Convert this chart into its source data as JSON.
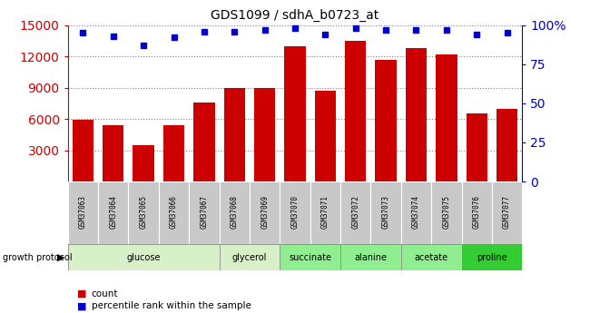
{
  "title": "GDS1099 / sdhA_b0723_at",
  "samples": [
    "GSM37063",
    "GSM37064",
    "GSM37065",
    "GSM37066",
    "GSM37067",
    "GSM37068",
    "GSM37069",
    "GSM37070",
    "GSM37071",
    "GSM37072",
    "GSM37073",
    "GSM37074",
    "GSM37075",
    "GSM37076",
    "GSM37077"
  ],
  "counts": [
    5900,
    5400,
    3500,
    5400,
    7600,
    9000,
    9000,
    13000,
    8700,
    13500,
    11700,
    12800,
    12200,
    6500,
    7000
  ],
  "percentiles": [
    95,
    93,
    87,
    92,
    96,
    96,
    97,
    98,
    94,
    98,
    97,
    97,
    97,
    94,
    95
  ],
  "ylim_left": [
    0,
    15000
  ],
  "ylim_right": [
    0,
    100
  ],
  "yticks_left": [
    3000,
    6000,
    9000,
    12000,
    15000
  ],
  "yticks_right": [
    0,
    25,
    50,
    75,
    100
  ],
  "bar_color": "#cc0000",
  "dot_color": "#0000cc",
  "group_spans": [
    {
      "label": "glucose",
      "start": 0,
      "end": 5,
      "color": "#d8f0c8"
    },
    {
      "label": "glycerol",
      "start": 5,
      "end": 7,
      "color": "#d8f0c8"
    },
    {
      "label": "succinate",
      "start": 7,
      "end": 9,
      "color": "#90ee90"
    },
    {
      "label": "alanine",
      "start": 9,
      "end": 11,
      "color": "#90ee90"
    },
    {
      "label": "acetate",
      "start": 11,
      "end": 13,
      "color": "#90ee90"
    },
    {
      "label": "proline",
      "start": 13,
      "end": 15,
      "color": "#33cc33"
    }
  ],
  "growth_protocol_label": "growth protocol",
  "legend_count_label": "count",
  "legend_pct_label": "percentile rank within the sample",
  "left_axis_color": "#cc0000",
  "right_axis_color": "#0000cc",
  "sample_label_color": "#c8c8c8"
}
